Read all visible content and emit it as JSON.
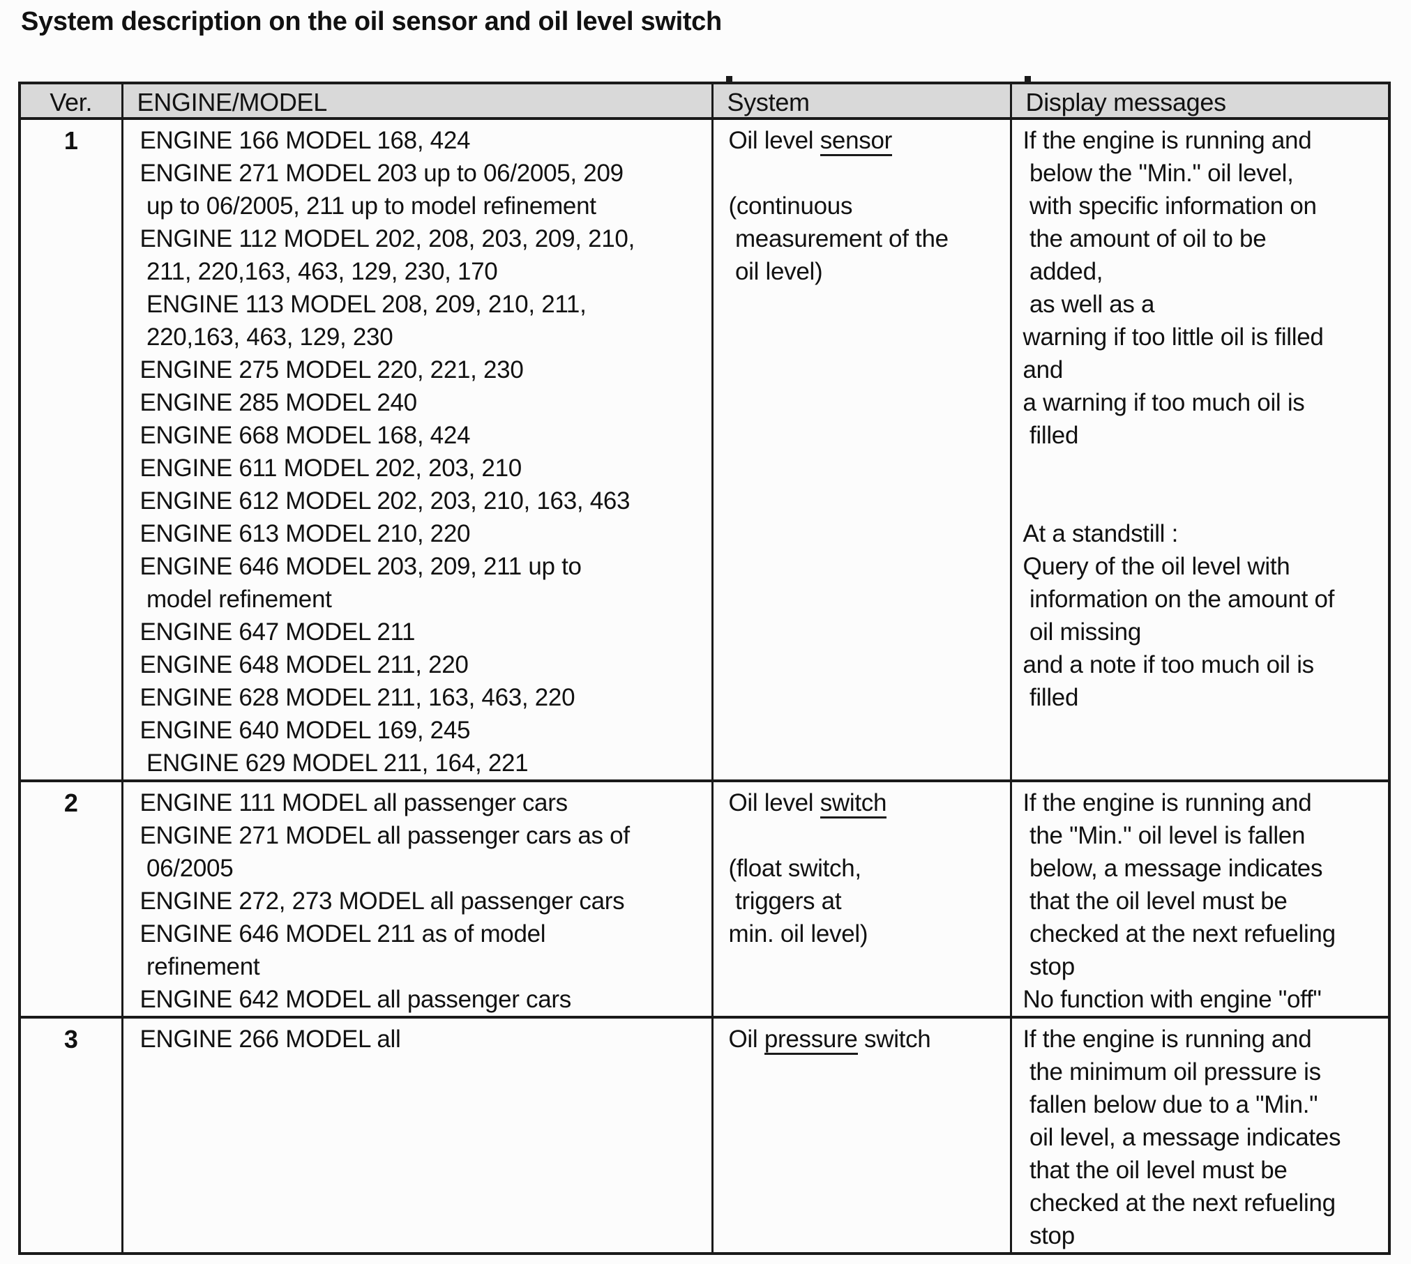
{
  "page": {
    "title": "System description on the oil sensor and oil level switch"
  },
  "colors": {
    "header_bg": "#d9d9d9",
    "border": "#1a1a1a",
    "text": "#111111",
    "page_bg": "#fcfcfc"
  },
  "table": {
    "headers": {
      "ver": "Ver.",
      "engine_model": "ENGINE/MODEL",
      "system": "System",
      "display_messages": "Display messages"
    },
    "rows": [
      {
        "ver": "1",
        "engine_model": "ENGINE 166 MODEL 168, 424\nENGINE 271 MODEL 203 up to 06/2005, 209\n up to 06/2005, 211 up to model refinement\nENGINE 112 MODEL 202, 208, 203, 209, 210,\n 211, 220,163, 463, 129, 230, 170\n ENGINE 113 MODEL 208, 209, 210, 211,\n 220,163, 463, 129, 230\nENGINE 275 MODEL 220, 221, 230\nENGINE 285 MODEL 240\nENGINE 668 MODEL 168, 424\nENGINE 611 MODEL 202, 203, 210\nENGINE 612 MODEL 202, 203, 210, 163, 463\nENGINE 613 MODEL 210, 220\nENGINE 646 MODEL 203, 209, 211 up to\n model refinement\nENGINE 647 MODEL 211\nENGINE 648 MODEL 211, 220\nENGINE 628 MODEL 211, 163, 463, 220\nENGINE 640 MODEL 169, 245\n ENGINE 629 MODEL 211, 164, 221",
        "system": {
          "prefix": "Oil level ",
          "underlined": "sensor",
          "suffix": "",
          "detail": "\n(continuous\n measurement of the\n oil level)"
        },
        "display_messages": "If the engine is running and\n below the \"Min.\" oil level,\n with specific information on\n the amount of oil to be\n added,\n as well as a\nwarning if too little oil is filled\nand\na warning if too much oil is\n filled\n\n\nAt a standstill :\nQuery of the oil level with\n information on the amount of\n oil missing\nand a note if too much oil is\n filled"
      },
      {
        "ver": "2",
        "engine_model": "ENGINE 111 MODEL all passenger cars\nENGINE 271 MODEL all passenger cars as of\n 06/2005\nENGINE 272, 273 MODEL all passenger cars\nENGINE 646 MODEL 211 as of model\n refinement\nENGINE 642 MODEL all passenger cars",
        "system": {
          "prefix": "Oil level ",
          "underlined": "switch",
          "suffix": "",
          "detail": "\n(float switch,\n triggers at\nmin. oil level)"
        },
        "display_messages": "If the engine is running and\n the \"Min.\" oil level is fallen\n below, a message indicates\n that the oil level must be\n checked at the next refueling\n stop\nNo function with engine \"off\""
      },
      {
        "ver": "3",
        "engine_model": "ENGINE 266 MODEL all",
        "system": {
          "prefix": "Oil ",
          "underlined": "pressure",
          "suffix": " switch",
          "detail": ""
        },
        "display_messages": "If the engine is running and\n the minimum oil pressure is\n fallen below due to a \"Min.\"\n oil level, a message indicates\n that the oil level must be\n checked at the next refueling\n stop"
      }
    ]
  }
}
